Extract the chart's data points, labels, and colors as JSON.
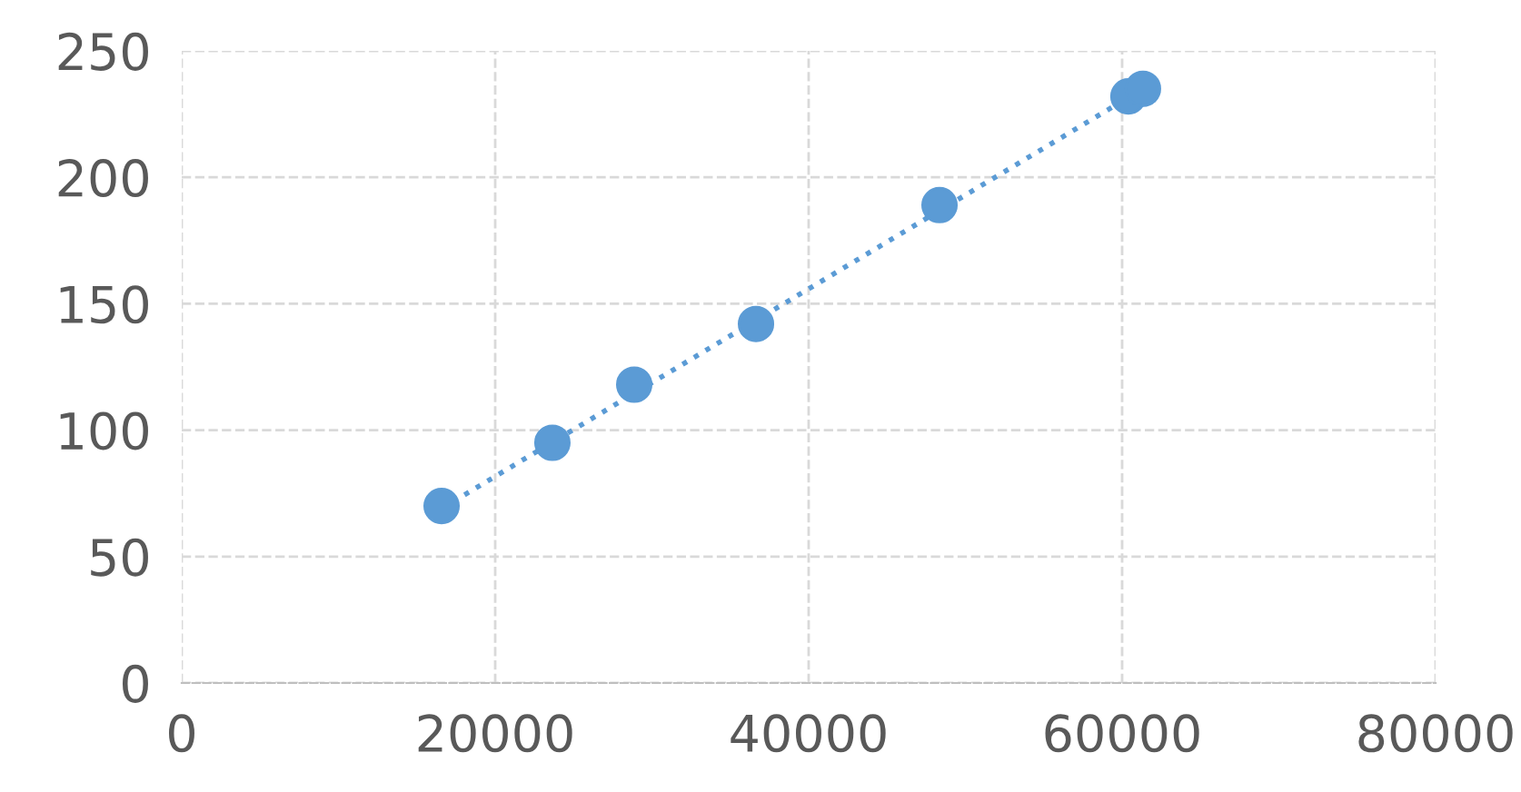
{
  "chart_data": {
    "type": "scatter",
    "x": [
      16580,
      23650,
      28870,
      36640,
      48350,
      60400,
      61330
    ],
    "series": [
      {
        "color": "#5b9bd5",
        "values": [
          70,
          95,
          118,
          142,
          189,
          232,
          235
        ],
        "marker": "circle"
      },
      {
        "type": "line",
        "color": "#5b9bd5",
        "x": [
          16580,
          61330
        ],
        "values": [
          69,
          235
        ],
        "line_style": "dotted"
      }
    ],
    "xlim": [
      0,
      80000
    ],
    "xticks": [
      0,
      20000,
      40000,
      60000,
      80000
    ],
    "ylim": [
      0,
      250
    ],
    "yticks": [
      0,
      50,
      100,
      150,
      200,
      250
    ],
    "grid": true,
    "legend": false
  }
}
